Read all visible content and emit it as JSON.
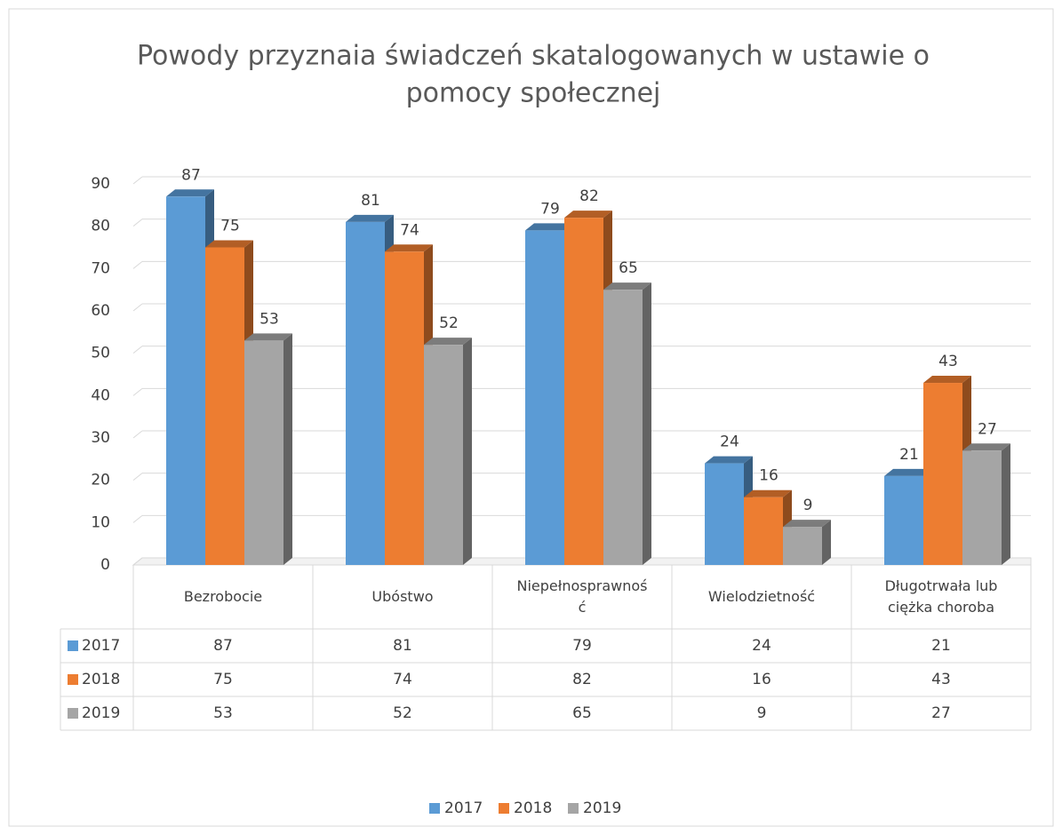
{
  "chart_data": {
    "type": "bar3d",
    "title": "Powody przyznaia świadczeń skatalogowanych w ustawie o pomocy społecznej",
    "categories": [
      "Bezrobocie",
      "Ubóstwo",
      "Niepełnosprawność",
      "Wielodzietność",
      "Długotrwała lub ciężka choroba"
    ],
    "series": [
      {
        "name": "2017",
        "color": "#5b9bd5",
        "values": [
          87,
          81,
          79,
          24,
          21
        ]
      },
      {
        "name": "2018",
        "color": "#ed7d31",
        "values": [
          75,
          74,
          82,
          16,
          43
        ]
      },
      {
        "name": "2019",
        "color": "#a5a5a5",
        "values": [
          53,
          52,
          65,
          9,
          27
        ]
      }
    ],
    "ylim": [
      0,
      90
    ],
    "yticks": [
      0,
      10,
      20,
      30,
      40,
      50,
      60,
      70,
      80,
      90
    ],
    "grid": true,
    "data_table": true,
    "legend": "bottom"
  }
}
